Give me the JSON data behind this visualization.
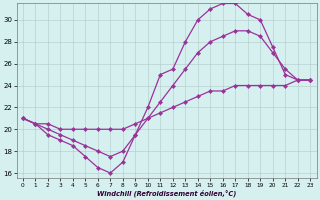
{
  "xlabel": "Windchill (Refroidissement éolien,°C)",
  "background_color": "#d6f0f0",
  "grid_color": "#b0c8c8",
  "line_color": "#993399",
  "xlim": [
    -0.5,
    23.5
  ],
  "ylim": [
    15.5,
    31.5
  ],
  "yticks": [
    16,
    18,
    20,
    22,
    24,
    26,
    28,
    30
  ],
  "xticks": [
    0,
    1,
    2,
    3,
    4,
    5,
    6,
    7,
    8,
    9,
    10,
    11,
    12,
    13,
    14,
    15,
    16,
    17,
    18,
    19,
    20,
    21,
    22,
    23
  ],
  "series": [
    {
      "x": [
        0,
        1,
        2,
        3,
        4,
        5,
        6,
        7,
        8,
        9,
        10,
        11,
        12,
        13,
        14,
        15,
        16,
        17,
        18,
        19,
        20,
        21,
        22,
        23
      ],
      "y": [
        21,
        20.5,
        19.5,
        19,
        18.5,
        17.5,
        16.5,
        16,
        17,
        19.5,
        22,
        25,
        25.5,
        28,
        30,
        31,
        31.5,
        31.5,
        30.5,
        30,
        27.5,
        25,
        24.5,
        24.5
      ]
    },
    {
      "x": [
        0,
        1,
        2,
        3,
        4,
        5,
        6,
        7,
        8,
        9,
        10,
        11,
        12,
        13,
        14,
        15,
        16,
        17,
        18,
        19,
        20,
        21,
        22,
        23
      ],
      "y": [
        21,
        20.5,
        20,
        19.5,
        19,
        18.5,
        18,
        17.5,
        18,
        19.5,
        21,
        22.5,
        24,
        25.5,
        27,
        28,
        28.5,
        29,
        29,
        28.5,
        27,
        25.5,
        24.5,
        24.5
      ]
    },
    {
      "x": [
        0,
        1,
        2,
        3,
        4,
        5,
        6,
        7,
        8,
        9,
        10,
        11,
        12,
        13,
        14,
        15,
        16,
        17,
        18,
        19,
        20,
        21,
        22,
        23
      ],
      "y": [
        21,
        20.5,
        20.5,
        20,
        20,
        20,
        20,
        20,
        20,
        20.5,
        21,
        21.5,
        22,
        22.5,
        23,
        23.5,
        23.5,
        24,
        24,
        24,
        24,
        24,
        24.5,
        24.5
      ]
    }
  ]
}
